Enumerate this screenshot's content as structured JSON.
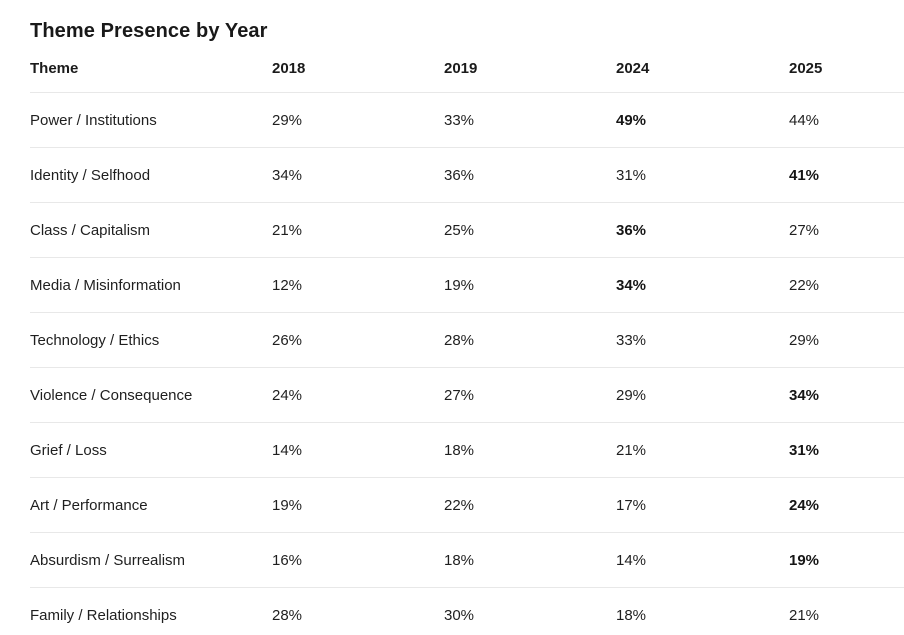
{
  "page": {
    "title": "Theme Presence by Year"
  },
  "colors": {
    "background": "#ffffff",
    "text": "#1f1f1f",
    "divider": "#e8e8e8"
  },
  "table": {
    "columns": [
      "Theme",
      "2018",
      "2019",
      "2024",
      "2025"
    ],
    "rows": [
      {
        "theme": "Power / Institutions",
        "values": [
          "29%",
          "33%",
          "49%",
          "44%"
        ],
        "bold_index": 2
      },
      {
        "theme": "Identity / Selfhood",
        "values": [
          "34%",
          "36%",
          "31%",
          "41%"
        ],
        "bold_index": 3
      },
      {
        "theme": "Class / Capitalism",
        "values": [
          "21%",
          "25%",
          "36%",
          "27%"
        ],
        "bold_index": 2
      },
      {
        "theme": "Media / Misinformation",
        "values": [
          "12%",
          "19%",
          "34%",
          "22%"
        ],
        "bold_index": 2
      },
      {
        "theme": "Technology / Ethics",
        "values": [
          "26%",
          "28%",
          "33%",
          "29%"
        ],
        "bold_index": -1
      },
      {
        "theme": "Violence / Consequence",
        "values": [
          "24%",
          "27%",
          "29%",
          "34%"
        ],
        "bold_index": 3
      },
      {
        "theme": "Grief / Loss",
        "values": [
          "14%",
          "18%",
          "21%",
          "31%"
        ],
        "bold_index": 3
      },
      {
        "theme": "Art / Performance",
        "values": [
          "19%",
          "22%",
          "17%",
          "24%"
        ],
        "bold_index": 3
      },
      {
        "theme": "Absurdism / Surrealism",
        "values": [
          "16%",
          "18%",
          "14%",
          "19%"
        ],
        "bold_index": 3
      },
      {
        "theme": "Family / Relationships",
        "values": [
          "28%",
          "30%",
          "18%",
          "21%"
        ],
        "bold_index": -1
      }
    ]
  },
  "chart_data": {
    "type": "table",
    "title": "Theme Presence by Year",
    "unit": "%",
    "categories": [
      "2018",
      "2019",
      "2024",
      "2025"
    ],
    "series": [
      {
        "name": "Power / Institutions",
        "values": [
          29,
          33,
          49,
          44
        ]
      },
      {
        "name": "Identity / Selfhood",
        "values": [
          34,
          36,
          31,
          41
        ]
      },
      {
        "name": "Class / Capitalism",
        "values": [
          21,
          25,
          36,
          27
        ]
      },
      {
        "name": "Media / Misinformation",
        "values": [
          12,
          19,
          34,
          22
        ]
      },
      {
        "name": "Technology / Ethics",
        "values": [
          26,
          28,
          33,
          29
        ]
      },
      {
        "name": "Violence / Consequence",
        "values": [
          24,
          27,
          29,
          34
        ]
      },
      {
        "name": "Grief / Loss",
        "values": [
          14,
          18,
          21,
          31
        ]
      },
      {
        "name": "Art / Performance",
        "values": [
          19,
          22,
          17,
          24
        ]
      },
      {
        "name": "Absurdism / Surrealism",
        "values": [
          16,
          18,
          14,
          19
        ]
      },
      {
        "name": "Family / Relationships",
        "values": [
          28,
          30,
          18,
          21
        ]
      }
    ],
    "emphasis_note": "Bolded cells in source image: Power 2024, Identity 2025, Class 2024, Media 2024, Violence 2025, Grief 2025, Art 2025, Absurdism 2025"
  }
}
